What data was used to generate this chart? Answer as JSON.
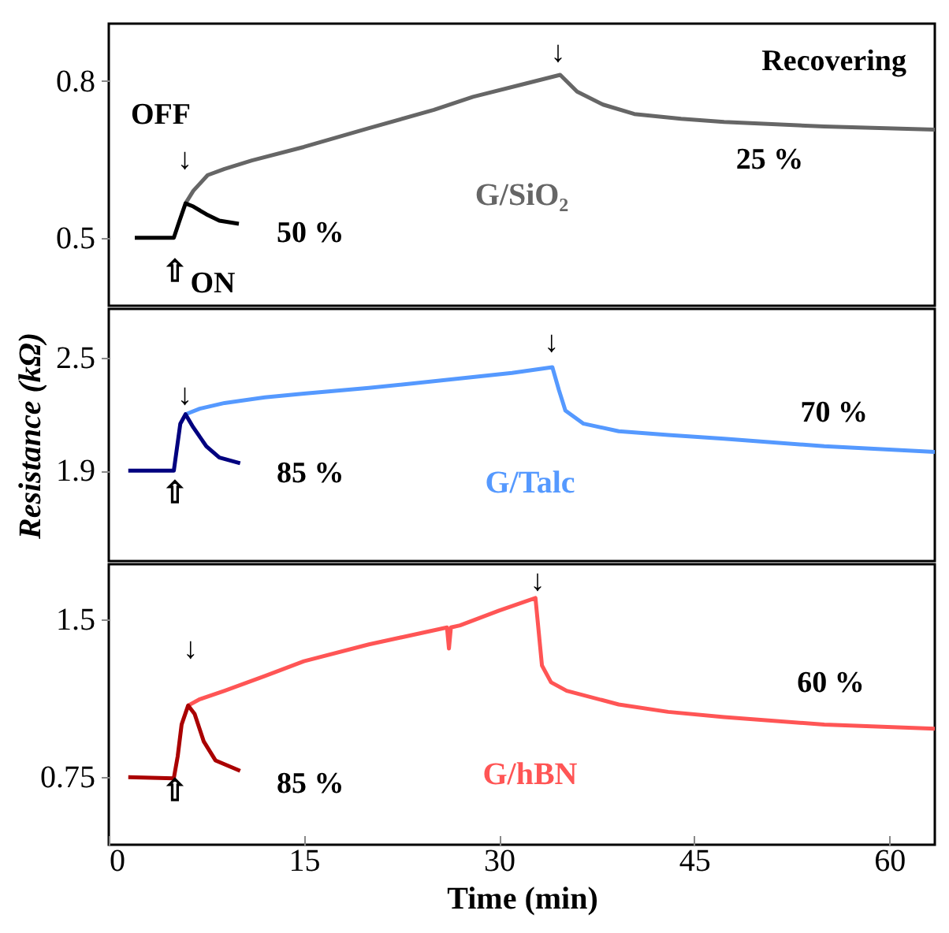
{
  "chart_data": [
    {
      "type": "line",
      "xlim": [
        0,
        63.5
      ],
      "xticks": [
        0,
        15,
        30,
        45,
        60
      ],
      "ylim": [
        0.37,
        0.91
      ],
      "yticks": [
        0.5,
        0.8
      ],
      "tick_labels": "y",
      "series": [
        {
          "name": "G/SiO₂",
          "color": "#666666",
          "x": [
            5.9,
            6.5,
            7.6,
            8.9,
            11,
            15,
            20,
            25,
            28,
            32,
            34.7,
            36,
            38,
            40.4,
            44,
            47.3,
            55,
            63.5
          ],
          "values": [
            0.566,
            0.59,
            0.62,
            0.632,
            0.648,
            0.674,
            0.71,
            0.745,
            0.77,
            0.795,
            0.812,
            0.78,
            0.755,
            0.737,
            0.728,
            0.722,
            0.713,
            0.707
          ]
        },
        {
          "color": "#000000",
          "x": [
            2,
            5,
            5.4,
            5.9,
            6.5,
            7.5,
            8.5,
            10
          ],
          "values": [
            0.5,
            0.5,
            0.53,
            0.566,
            0.56,
            0.545,
            0.533,
            0.527
          ]
        }
      ],
      "annotations": [
        "OFF",
        "↓",
        "⇧",
        "ON",
        "50 %",
        "↓",
        "25 %",
        "Recovering"
      ]
    },
    {
      "type": "line",
      "xlim": [
        0,
        63.5
      ],
      "xticks": [
        0,
        15,
        30,
        45,
        60
      ],
      "ylim": [
        1.42,
        2.76
      ],
      "yticks": [
        1.9,
        2.5
      ],
      "tick_labels": "y",
      "ylabel": "Resistance (kΩ)",
      "series": [
        {
          "name": "G/Talc",
          "color": "#5599ff",
          "x": [
            5.9,
            7,
            8.9,
            12,
            15,
            20,
            27,
            31,
            34.1,
            34.6,
            35.1,
            36.5,
            39.2,
            43,
            47.3,
            55,
            63.5
          ],
          "values": [
            2.2,
            2.23,
            2.26,
            2.29,
            2.31,
            2.34,
            2.39,
            2.42,
            2.45,
            2.33,
            2.22,
            2.15,
            2.11,
            2.09,
            2.07,
            2.03,
            2.0
          ]
        },
        {
          "color": "#00007f",
          "x": [
            1.5,
            5,
            5.2,
            5.5,
            5.9,
            6.5,
            7.5,
            8.5,
            10.1
          ],
          "values": [
            1.9,
            1.9,
            2.0,
            2.15,
            2.2,
            2.13,
            2.03,
            1.97,
            1.94
          ]
        }
      ],
      "annotations": [
        "↓",
        "⇧",
        "85 %",
        "↓",
        "70 %"
      ]
    },
    {
      "type": "line",
      "xlim": [
        0,
        63.5
      ],
      "xticks": [
        0,
        15,
        30,
        45,
        60
      ],
      "ylim": [
        0.43,
        1.76
      ],
      "yticks": [
        0.75,
        1.5
      ],
      "xlabel": "Time (min)",
      "series": [
        {
          "name": "G/hBN",
          "color": "#ff5555",
          "x": [
            6.1,
            7,
            8.9,
            12,
            15,
            20,
            26.0,
            26.15,
            26.3,
            27,
            30,
            32.8,
            33.3,
            34,
            35.2,
            39.2,
            43,
            47.3,
            55,
            63.5
          ],
          "values": [
            1.09,
            1.12,
            1.16,
            1.23,
            1.3,
            1.38,
            1.46,
            1.36,
            1.46,
            1.47,
            1.54,
            1.6,
            1.28,
            1.2,
            1.16,
            1.095,
            1.06,
            1.035,
            1.0,
            0.98
          ]
        },
        {
          "color": "#aa0000",
          "x": [
            1.5,
            5,
            5.3,
            5.6,
            6.1,
            6.6,
            7.3,
            8.2,
            10.1
          ],
          "values": [
            0.75,
            0.745,
            0.85,
            1.0,
            1.09,
            1.05,
            0.92,
            0.83,
            0.78
          ]
        }
      ],
      "annotations": [
        "↓",
        "⇧",
        "85 %",
        "↓",
        "60 %"
      ]
    }
  ]
}
